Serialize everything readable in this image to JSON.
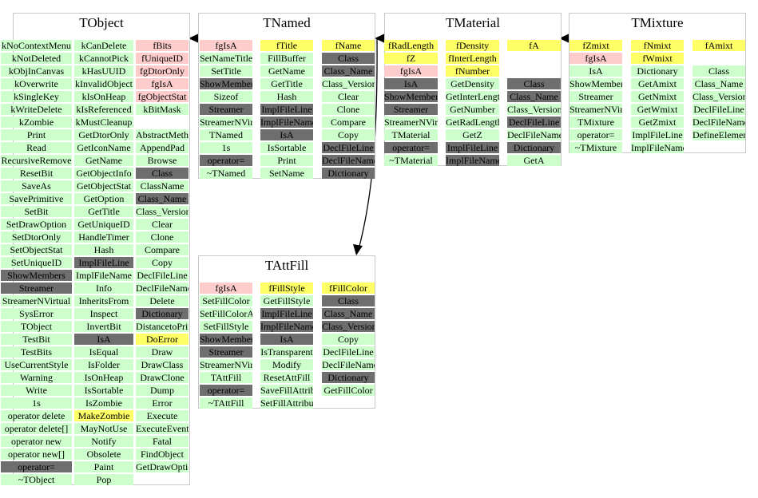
{
  "colors": {
    "method": "#ccffcc",
    "data_member": "#ffff66",
    "base_data_member": "#ffcccc",
    "inherited_gray": "#6e6e6e",
    "border": "#c8c8c8"
  },
  "classes": [
    {
      "title": "TObject",
      "columns": [
        [
          {
            "t": "kNoContextMenu",
            "k": "method"
          },
          {
            "t": "kNotDeleted",
            "k": "method"
          },
          {
            "t": "kObjInCanvas",
            "k": "method"
          },
          {
            "t": "kOverwrite",
            "k": "method"
          },
          {
            "t": "kSingleKey",
            "k": "method"
          },
          {
            "t": "kWriteDelete",
            "k": "method"
          },
          {
            "t": "kZombie",
            "k": "method"
          },
          {
            "t": "Print",
            "k": "method"
          },
          {
            "t": "Read",
            "k": "method"
          },
          {
            "t": "RecursiveRemove",
            "k": "method"
          },
          {
            "t": "ResetBit",
            "k": "method"
          },
          {
            "t": "SaveAs",
            "k": "method"
          },
          {
            "t": "SavePrimitive",
            "k": "method"
          },
          {
            "t": "SetBit",
            "k": "method"
          },
          {
            "t": "SetDrawOption",
            "k": "method"
          },
          {
            "t": "SetDtorOnly",
            "k": "method"
          },
          {
            "t": "SetObjectStat",
            "k": "method"
          },
          {
            "t": "SetUniqueID",
            "k": "method"
          },
          {
            "t": "ShowMembers",
            "k": "gray"
          },
          {
            "t": "Streamer",
            "k": "gray"
          },
          {
            "t": "StreamerNVirtual",
            "k": "method"
          },
          {
            "t": "SysError",
            "k": "method"
          },
          {
            "t": "TObject",
            "k": "method"
          },
          {
            "t": "TestBit",
            "k": "method"
          },
          {
            "t": "TestBits",
            "k": "method"
          },
          {
            "t": "UseCurrentStyle",
            "k": "method"
          },
          {
            "t": "Warning",
            "k": "method"
          },
          {
            "t": "Write",
            "k": "method"
          },
          {
            "t": "1s",
            "k": "method"
          },
          {
            "t": "operator delete",
            "k": "method"
          },
          {
            "t": "operator delete[]",
            "k": "method"
          },
          {
            "t": "operator new",
            "k": "method"
          },
          {
            "t": "operator new[]",
            "k": "method"
          },
          {
            "t": "operator=",
            "k": "gray"
          },
          {
            "t": "~TObject",
            "k": "method"
          }
        ],
        [
          {
            "t": "kCanDelete",
            "k": "method"
          },
          {
            "t": "kCannotPick",
            "k": "method"
          },
          {
            "t": "kHasUUID",
            "k": "method"
          },
          {
            "t": "kInvalidObject",
            "k": "method"
          },
          {
            "t": "kIsOnHeap",
            "k": "method"
          },
          {
            "t": "kIsReferenced",
            "k": "method"
          },
          {
            "t": "kMustCleanup",
            "k": "method"
          },
          {
            "t": "GetDtorOnly",
            "k": "method"
          },
          {
            "t": "GetIconName",
            "k": "method"
          },
          {
            "t": "GetName",
            "k": "method"
          },
          {
            "t": "GetObjectInfo",
            "k": "method"
          },
          {
            "t": "GetObjectStat",
            "k": "method"
          },
          {
            "t": "GetOption",
            "k": "method"
          },
          {
            "t": "GetTitle",
            "k": "method"
          },
          {
            "t": "GetUniqueID",
            "k": "method"
          },
          {
            "t": "HandleTimer",
            "k": "method"
          },
          {
            "t": "Hash",
            "k": "method"
          },
          {
            "t": "ImplFileLine",
            "k": "gray"
          },
          {
            "t": "ImplFileName",
            "k": "method"
          },
          {
            "t": "Info",
            "k": "method"
          },
          {
            "t": "InheritsFrom",
            "k": "method"
          },
          {
            "t": "Inspect",
            "k": "method"
          },
          {
            "t": "InvertBit",
            "k": "method"
          },
          {
            "t": "IsA",
            "k": "gray"
          },
          {
            "t": "IsEqual",
            "k": "method"
          },
          {
            "t": "IsFolder",
            "k": "method"
          },
          {
            "t": "IsOnHeap",
            "k": "method"
          },
          {
            "t": "IsSortable",
            "k": "method"
          },
          {
            "t": "IsZombie",
            "k": "method"
          },
          {
            "t": "MakeZombie",
            "k": "data"
          },
          {
            "t": "MayNotUse",
            "k": "method"
          },
          {
            "t": "Notify",
            "k": "method"
          },
          {
            "t": "Obsolete",
            "k": "method"
          },
          {
            "t": "Paint",
            "k": "method"
          },
          {
            "t": "Pop",
            "k": "method"
          }
        ],
        [
          {
            "t": "fBits",
            "k": "basedata"
          },
          {
            "t": "fUniqueID",
            "k": "basedata"
          },
          {
            "t": "fgDtorOnly",
            "k": "basedata"
          },
          {
            "t": "fgIsA",
            "k": "basedata"
          },
          {
            "t": "fgObjectStat",
            "k": "basedata"
          },
          {
            "t": "kBitMask",
            "k": "method"
          },
          {
            "t": "",
            "k": "none"
          },
          {
            "t": "AbstractMethod",
            "k": "method"
          },
          {
            "t": "AppendPad",
            "k": "method"
          },
          {
            "t": "Browse",
            "k": "method"
          },
          {
            "t": "Class",
            "k": "gray"
          },
          {
            "t": "ClassName",
            "k": "method"
          },
          {
            "t": "Class_Name",
            "k": "gray"
          },
          {
            "t": "Class_Version",
            "k": "method"
          },
          {
            "t": "Clear",
            "k": "method"
          },
          {
            "t": "Clone",
            "k": "method"
          },
          {
            "t": "Compare",
            "k": "method"
          },
          {
            "t": "Copy",
            "k": "method"
          },
          {
            "t": "DeclFileLine",
            "k": "method"
          },
          {
            "t": "DeclFileName",
            "k": "method"
          },
          {
            "t": "Delete",
            "k": "method"
          },
          {
            "t": "Dictionary",
            "k": "gray"
          },
          {
            "t": "DistancetoPrimitive",
            "k": "method"
          },
          {
            "t": "DoError",
            "k": "data"
          },
          {
            "t": "Draw",
            "k": "method"
          },
          {
            "t": "DrawClass",
            "k": "method"
          },
          {
            "t": "DrawClone",
            "k": "method"
          },
          {
            "t": "Dump",
            "k": "method"
          },
          {
            "t": "Error",
            "k": "method"
          },
          {
            "t": "Execute",
            "k": "method"
          },
          {
            "t": "ExecuteEvent",
            "k": "method"
          },
          {
            "t": "Fatal",
            "k": "method"
          },
          {
            "t": "FindObject",
            "k": "method"
          },
          {
            "t": "GetDrawOption",
            "k": "method"
          }
        ]
      ]
    },
    {
      "title": "TNamed",
      "columns": [
        [
          {
            "t": "fgIsA",
            "k": "basedata"
          },
          {
            "t": "SetNameTitle",
            "k": "method"
          },
          {
            "t": "SetTitle",
            "k": "method"
          },
          {
            "t": "ShowMembers",
            "k": "gray"
          },
          {
            "t": "Sizeof",
            "k": "method"
          },
          {
            "t": "Streamer",
            "k": "gray"
          },
          {
            "t": "StreamerNVirtual",
            "k": "method"
          },
          {
            "t": "TNamed",
            "k": "method"
          },
          {
            "t": "1s",
            "k": "method"
          },
          {
            "t": "operator=",
            "k": "gray"
          },
          {
            "t": "~TNamed",
            "k": "method"
          }
        ],
        [
          {
            "t": "fTitle",
            "k": "data"
          },
          {
            "t": "FillBuffer",
            "k": "method"
          },
          {
            "t": "GetName",
            "k": "method"
          },
          {
            "t": "GetTitle",
            "k": "method"
          },
          {
            "t": "Hash",
            "k": "method"
          },
          {
            "t": "ImplFileLine",
            "k": "gray"
          },
          {
            "t": "ImplFileName",
            "k": "gray"
          },
          {
            "t": "IsA",
            "k": "gray"
          },
          {
            "t": "IsSortable",
            "k": "method"
          },
          {
            "t": "Print",
            "k": "method"
          },
          {
            "t": "SetName",
            "k": "method"
          }
        ],
        [
          {
            "t": "fName",
            "k": "data"
          },
          {
            "t": "Class",
            "k": "gray"
          },
          {
            "t": "Class_Name",
            "k": "gray"
          },
          {
            "t": "Class_Version",
            "k": "method"
          },
          {
            "t": "Clear",
            "k": "method"
          },
          {
            "t": "Clone",
            "k": "method"
          },
          {
            "t": "Compare",
            "k": "method"
          },
          {
            "t": "Copy",
            "k": "method"
          },
          {
            "t": "DeclFileLine",
            "k": "gray"
          },
          {
            "t": "DeclFileName",
            "k": "gray"
          },
          {
            "t": "Dictionary",
            "k": "gray"
          }
        ]
      ]
    },
    {
      "title": "TMaterial",
      "columns": [
        [
          {
            "t": "fRadLength",
            "k": "data"
          },
          {
            "t": "fZ",
            "k": "data"
          },
          {
            "t": "fgIsA",
            "k": "basedata"
          },
          {
            "t": "IsA",
            "k": "gray"
          },
          {
            "t": "ShowMembers",
            "k": "gray"
          },
          {
            "t": "Streamer",
            "k": "gray"
          },
          {
            "t": "StreamerNVirtual",
            "k": "method"
          },
          {
            "t": "TMaterial",
            "k": "method"
          },
          {
            "t": "operator=",
            "k": "gray"
          },
          {
            "t": "~TMaterial",
            "k": "method"
          }
        ],
        [
          {
            "t": "fDensity",
            "k": "data"
          },
          {
            "t": "fInterLength",
            "k": "data"
          },
          {
            "t": "fNumber",
            "k": "data"
          },
          {
            "t": "GetDensity",
            "k": "method"
          },
          {
            "t": "GetInterLength",
            "k": "method"
          },
          {
            "t": "GetNumber",
            "k": "method"
          },
          {
            "t": "GetRadLength",
            "k": "method"
          },
          {
            "t": "GetZ",
            "k": "method"
          },
          {
            "t": "ImplFileLine",
            "k": "gray"
          },
          {
            "t": "ImplFileName",
            "k": "gray"
          }
        ],
        [
          {
            "t": "fA",
            "k": "data"
          },
          {
            "t": "",
            "k": "none"
          },
          {
            "t": "",
            "k": "none"
          },
          {
            "t": "Class",
            "k": "gray"
          },
          {
            "t": "Class_Name",
            "k": "gray"
          },
          {
            "t": "Class_Version",
            "k": "method"
          },
          {
            "t": "DeclFileLine",
            "k": "gray"
          },
          {
            "t": "DeclFileName",
            "k": "method"
          },
          {
            "t": "Dictionary",
            "k": "gray"
          },
          {
            "t": "GetA",
            "k": "method"
          }
        ]
      ]
    },
    {
      "title": "TMixture",
      "columns": [
        [
          {
            "t": "fZmixt",
            "k": "data"
          },
          {
            "t": "fgIsA",
            "k": "basedata"
          },
          {
            "t": "IsA",
            "k": "method"
          },
          {
            "t": "ShowMembers",
            "k": "method"
          },
          {
            "t": "Streamer",
            "k": "method"
          },
          {
            "t": "StreamerNVirtual",
            "k": "method"
          },
          {
            "t": "TMixture",
            "k": "method"
          },
          {
            "t": "operator=",
            "k": "method"
          },
          {
            "t": "~TMixture",
            "k": "method"
          }
        ],
        [
          {
            "t": "fNmixt",
            "k": "data"
          },
          {
            "t": "fWmixt",
            "k": "data"
          },
          {
            "t": "Dictionary",
            "k": "method"
          },
          {
            "t": "GetAmixt",
            "k": "method"
          },
          {
            "t": "GetNmixt",
            "k": "method"
          },
          {
            "t": "GetWmixt",
            "k": "method"
          },
          {
            "t": "GetZmixt",
            "k": "method"
          },
          {
            "t": "ImplFileLine",
            "k": "method"
          },
          {
            "t": "ImplFileName",
            "k": "method"
          }
        ],
        [
          {
            "t": "fAmixt",
            "k": "data"
          },
          {
            "t": "",
            "k": "none"
          },
          {
            "t": "Class",
            "k": "method"
          },
          {
            "t": "Class_Name",
            "k": "method"
          },
          {
            "t": "Class_Version",
            "k": "method"
          },
          {
            "t": "DeclFileLine",
            "k": "method"
          },
          {
            "t": "DeclFileName",
            "k": "method"
          },
          {
            "t": "DefineElement",
            "k": "method"
          }
        ]
      ]
    },
    {
      "title": "TAttFill",
      "columns": [
        [
          {
            "t": "fgIsA",
            "k": "basedata"
          },
          {
            "t": "SetFillColor",
            "k": "method"
          },
          {
            "t": "SetFillColorAlpha",
            "k": "method"
          },
          {
            "t": "SetFillStyle",
            "k": "method"
          },
          {
            "t": "ShowMembers",
            "k": "gray"
          },
          {
            "t": "Streamer",
            "k": "gray"
          },
          {
            "t": "StreamerNVirtual",
            "k": "method"
          },
          {
            "t": "TAttFill",
            "k": "method"
          },
          {
            "t": "operator=",
            "k": "gray"
          },
          {
            "t": "~TAttFill",
            "k": "method"
          }
        ],
        [
          {
            "t": "fFillStyle",
            "k": "data"
          },
          {
            "t": "GetFillStyle",
            "k": "method"
          },
          {
            "t": "ImplFileLine",
            "k": "gray"
          },
          {
            "t": "ImplFileName",
            "k": "gray"
          },
          {
            "t": "IsA",
            "k": "gray"
          },
          {
            "t": "IsTransparent",
            "k": "method"
          },
          {
            "t": "Modify",
            "k": "method"
          },
          {
            "t": "ResetAttFill",
            "k": "method"
          },
          {
            "t": "SaveFillAttributes",
            "k": "method"
          },
          {
            "t": "SetFillAttributes",
            "k": "method"
          }
        ],
        [
          {
            "t": "fFillColor",
            "k": "data"
          },
          {
            "t": "Class",
            "k": "gray"
          },
          {
            "t": "Class_Name",
            "k": "gray"
          },
          {
            "t": "Class_Version",
            "k": "gray"
          },
          {
            "t": "Copy",
            "k": "method"
          },
          {
            "t": "DeclFileLine",
            "k": "method"
          },
          {
            "t": "DeclFileName",
            "k": "method"
          },
          {
            "t": "Dictionary",
            "k": "gray"
          },
          {
            "t": "GetFillColor",
            "k": "method"
          }
        ]
      ]
    }
  ],
  "inheritance": [
    {
      "from": "TNamed",
      "to": "TObject"
    },
    {
      "from": "TMaterial",
      "to": "TNamed"
    },
    {
      "from": "TMixture",
      "to": "TMaterial"
    },
    {
      "from": "TMaterial",
      "to": "TAttFill"
    }
  ]
}
